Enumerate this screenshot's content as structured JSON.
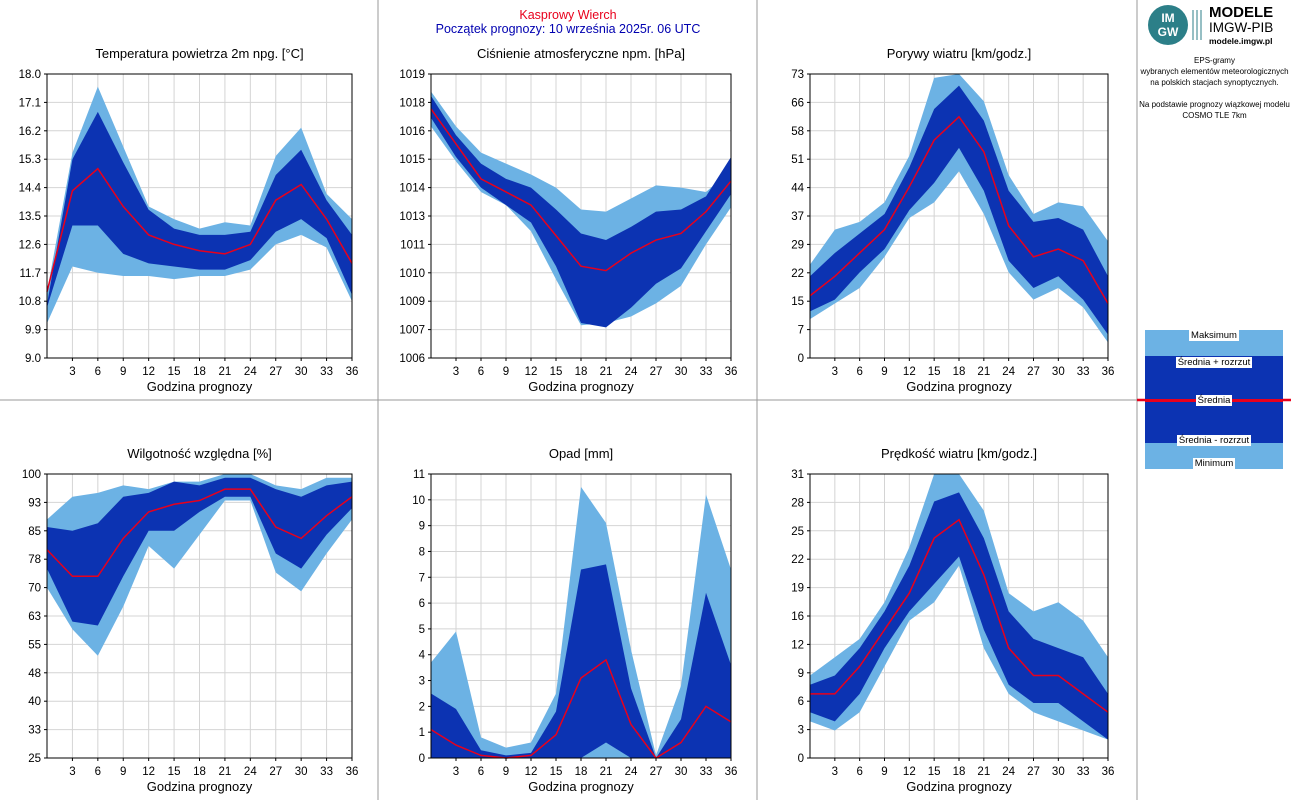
{
  "header": {
    "station": "Kasprowy Wierch",
    "forecast_start": "Początek prognozy: 10 września 2025r. 06 UTC"
  },
  "logo": {
    "badge": "IMGW",
    "line1": "MODELE",
    "line2": "IMGW-PIB",
    "line3": "modele.imgw.pl"
  },
  "side_info": {
    "line1": "EPS-gramy",
    "line2": "wybranych elementów meteorologicznych",
    "line3": "na polskich stacjach  synoptycznych.",
    "line4": "Na podstawie prognozy wiązkowej modelu",
    "line5": "COSMO TLE 7km"
  },
  "legend": {
    "max": "Maksimum",
    "mean_plus": "Średnia + rozrzut",
    "mean": "Średnia",
    "mean_minus": "Średnia - rozrzut",
    "min": "Minimum"
  },
  "colors": {
    "light_band": "#6cb2e4",
    "dark_band": "#0c33b2",
    "mean_line": "#e8001c",
    "grid": "#d4d4d4",
    "station_title": "#e8001c",
    "date_title": "#0000b0"
  },
  "chart_data": [
    {
      "type": "area",
      "title": "Temperatura powietrza 2m npg. [°C]",
      "xlabel": "Godzina prognozy",
      "x": [
        0,
        3,
        6,
        9,
        12,
        15,
        18,
        21,
        24,
        27,
        30,
        33,
        36
      ],
      "xticks": [
        "3",
        "6",
        "9",
        "12",
        "15",
        "18",
        "21",
        "24",
        "27",
        "30",
        "33",
        "36"
      ],
      "ylim": [
        9.0,
        18.0
      ],
      "yticks": [
        "9.0",
        "9.9",
        "10.8",
        "11.7",
        "12.6",
        "13.5",
        "14.4",
        "15.3",
        "16.2",
        "17.1",
        "18.0"
      ],
      "series": {
        "max": [
          11.1,
          15.5,
          17.6,
          15.7,
          13.8,
          13.4,
          13.1,
          13.3,
          13.2,
          15.4,
          16.3,
          14.2,
          13.4
        ],
        "mean_plus": [
          10.7,
          15.3,
          16.8,
          15.2,
          13.7,
          13.1,
          12.9,
          12.9,
          13.0,
          14.8,
          15.6,
          14.0,
          12.9
        ],
        "mean": [
          11.1,
          14.3,
          15.0,
          13.8,
          12.9,
          12.6,
          12.4,
          12.3,
          12.6,
          14.0,
          14.5,
          13.4,
          12.0
        ],
        "mean_minus": [
          10.6,
          13.2,
          13.2,
          12.3,
          12.0,
          11.9,
          11.8,
          11.8,
          12.1,
          13.0,
          13.4,
          12.8,
          11.0
        ],
        "min": [
          10.1,
          11.9,
          11.7,
          11.6,
          11.6,
          11.5,
          11.6,
          11.6,
          11.8,
          12.6,
          12.9,
          12.5,
          10.8
        ]
      }
    },
    {
      "type": "area",
      "title": "Ciśnienie atmosferyczne npm. [hPa]",
      "xlabel": "Godzina prognozy",
      "x": [
        0,
        3,
        6,
        9,
        12,
        15,
        18,
        21,
        24,
        27,
        30,
        33,
        36
      ],
      "xticks": [
        "3",
        "6",
        "9",
        "12",
        "15",
        "18",
        "21",
        "24",
        "27",
        "30",
        "33",
        "36"
      ],
      "ylim": [
        1006,
        1019
      ],
      "yticks": [
        "1006",
        "1007",
        "1009",
        "1010",
        "1011",
        "1013",
        "1014",
        "1015",
        "1016",
        "1018",
        "1019"
      ],
      "series": {
        "max": [
          1018.2,
          1016.6,
          1015.4,
          1014.9,
          1014.4,
          1013.8,
          1012.8,
          1012.7,
          1013.3,
          1013.9,
          1013.8,
          1013.6,
          1014.6
        ],
        "mean_plus": [
          1018.0,
          1016.2,
          1014.9,
          1014.2,
          1013.8,
          1012.8,
          1011.7,
          1011.4,
          1012.0,
          1012.7,
          1012.8,
          1013.4,
          1015.2
        ],
        "mean": [
          1017.4,
          1015.8,
          1014.2,
          1013.6,
          1013.0,
          1011.6,
          1010.2,
          1010.0,
          1010.8,
          1011.4,
          1011.7,
          1012.7,
          1014.1
        ],
        "mean_minus": [
          1017.0,
          1015.2,
          1013.8,
          1013.0,
          1012.2,
          1010.2,
          1007.6,
          1007.4,
          1008.3,
          1009.4,
          1010.1,
          1011.8,
          1013.5
        ],
        "min": [
          1016.6,
          1015.0,
          1013.6,
          1013.0,
          1011.8,
          1009.6,
          1007.5,
          1007.6,
          1007.9,
          1008.5,
          1009.3,
          1011.2,
          1012.9
        ]
      }
    },
    {
      "type": "area",
      "title": "Porywy wiatru [km/godz.]",
      "xlabel": "Godzina prognozy",
      "x": [
        0,
        3,
        6,
        9,
        12,
        15,
        18,
        21,
        24,
        27,
        30,
        33,
        36
      ],
      "xticks": [
        "3",
        "6",
        "9",
        "12",
        "15",
        "18",
        "21",
        "24",
        "27",
        "30",
        "33",
        "36"
      ],
      "ylim": [
        0,
        73
      ],
      "yticks": [
        "0",
        "7",
        "15",
        "22",
        "29",
        "37",
        "44",
        "51",
        "58",
        "66",
        "73"
      ],
      "series": {
        "max": [
          24,
          33,
          35,
          40,
          52,
          72,
          73,
          66,
          47,
          37,
          40,
          39,
          30
        ],
        "mean_plus": [
          21,
          27,
          32,
          37,
          49,
          64,
          70,
          61,
          43,
          35,
          36,
          33,
          21
        ],
        "mean": [
          16,
          21,
          27,
          33,
          44,
          56,
          62,
          53,
          34,
          26,
          28,
          25,
          14
        ],
        "mean_minus": [
          12,
          15,
          22,
          28,
          38,
          45,
          54,
          43,
          25,
          18,
          21,
          15,
          6
        ],
        "min": [
          10,
          14,
          18,
          26,
          36,
          40,
          48,
          37,
          22,
          15,
          18,
          13,
          4
        ]
      }
    },
    {
      "type": "area",
      "title": "Wilgotność względna [%]",
      "xlabel": "Godzina prognozy",
      "x": [
        0,
        3,
        6,
        9,
        12,
        15,
        18,
        21,
        24,
        27,
        30,
        33,
        36
      ],
      "xticks": [
        "3",
        "6",
        "9",
        "12",
        "15",
        "18",
        "21",
        "24",
        "27",
        "30",
        "33",
        "36"
      ],
      "ylim": [
        25,
        100
      ],
      "yticks": [
        "25",
        "33",
        "40",
        "48",
        "55",
        "63",
        "70",
        "78",
        "85",
        "93",
        "100"
      ],
      "series": {
        "max": [
          88,
          94,
          95,
          97,
          96,
          98,
          98,
          100,
          100,
          97,
          96,
          99,
          99
        ],
        "mean_plus": [
          86,
          85,
          87,
          94,
          95,
          98,
          97,
          99,
          99,
          96,
          94,
          97,
          98
        ],
        "mean": [
          80,
          73,
          73,
          83,
          90,
          92,
          93,
          96,
          96,
          86,
          83,
          89,
          94
        ],
        "mean_minus": [
          75,
          61,
          60,
          73,
          85,
          85,
          90,
          94,
          94,
          79,
          75,
          84,
          91
        ],
        "min": [
          70,
          59,
          52,
          65,
          81,
          75,
          84,
          93,
          93,
          74,
          69,
          79,
          88
        ]
      }
    },
    {
      "type": "area",
      "title": "Opad [mm]",
      "xlabel": "Godzina prognozy",
      "x": [
        0,
        3,
        6,
        9,
        12,
        15,
        18,
        21,
        24,
        27,
        30,
        33,
        36
      ],
      "xticks": [
        "3",
        "6",
        "9",
        "12",
        "15",
        "18",
        "21",
        "24",
        "27",
        "30",
        "33",
        "36"
      ],
      "ylim": [
        0,
        11
      ],
      "yticks": [
        "0",
        "1",
        "2",
        "3",
        "4",
        "5",
        "6",
        "7",
        "8",
        "9",
        "10",
        "11"
      ],
      "series": {
        "max": [
          3.7,
          4.9,
          0.8,
          0.4,
          0.6,
          2.5,
          10.5,
          9.1,
          4.2,
          0.1,
          2.8,
          10.2,
          7.3
        ],
        "mean_plus": [
          2.5,
          1.9,
          0.3,
          0.1,
          0.2,
          1.8,
          7.3,
          7.5,
          2.7,
          0.0,
          1.5,
          6.4,
          3.6
        ],
        "mean": [
          1.1,
          0.5,
          0.1,
          0.0,
          0.1,
          0.9,
          3.1,
          3.8,
          1.3,
          0.0,
          0.6,
          2.0,
          1.4
        ],
        "mean_minus": [
          0.0,
          0.0,
          0.0,
          0.0,
          0.0,
          0.0,
          0.0,
          0.6,
          0.0,
          0.0,
          0.0,
          0.0,
          0.0
        ],
        "min": [
          0.0,
          0.0,
          0.0,
          0.0,
          0.0,
          0.0,
          0.0,
          0.0,
          0.0,
          0.0,
          0.0,
          0.0,
          0.0
        ]
      }
    },
    {
      "type": "area",
      "title": "Prędkość wiatru [km/godz.]",
      "xlabel": "Godzina prognozy",
      "x": [
        0,
        3,
        6,
        9,
        12,
        15,
        18,
        21,
        24,
        27,
        30,
        33,
        36
      ],
      "xticks": [
        "3",
        "6",
        "9",
        "12",
        "15",
        "18",
        "21",
        "24",
        "27",
        "30",
        "33",
        "36"
      ],
      "ylim": [
        0,
        31
      ],
      "yticks": [
        "0",
        "3",
        "6",
        "9",
        "12",
        "16",
        "19",
        "22",
        "25",
        "28",
        "31"
      ],
      "series": {
        "max": [
          9,
          11,
          13,
          17,
          23,
          31,
          31,
          27,
          18,
          16,
          17,
          15,
          11
        ],
        "mean_plus": [
          8,
          9,
          12,
          16,
          21,
          28,
          29,
          24,
          16,
          13,
          12,
          11,
          7
        ],
        "mean": [
          7,
          7,
          10,
          14,
          18,
          24,
          26,
          20,
          12,
          9,
          9,
          7,
          5
        ],
        "mean_minus": [
          5,
          4,
          7,
          12,
          16,
          19,
          22,
          14,
          8,
          6,
          6,
          4,
          2
        ],
        "min": [
          4,
          3,
          5,
          10,
          15,
          17,
          21,
          12,
          7,
          5,
          4,
          3,
          2
        ]
      }
    }
  ]
}
